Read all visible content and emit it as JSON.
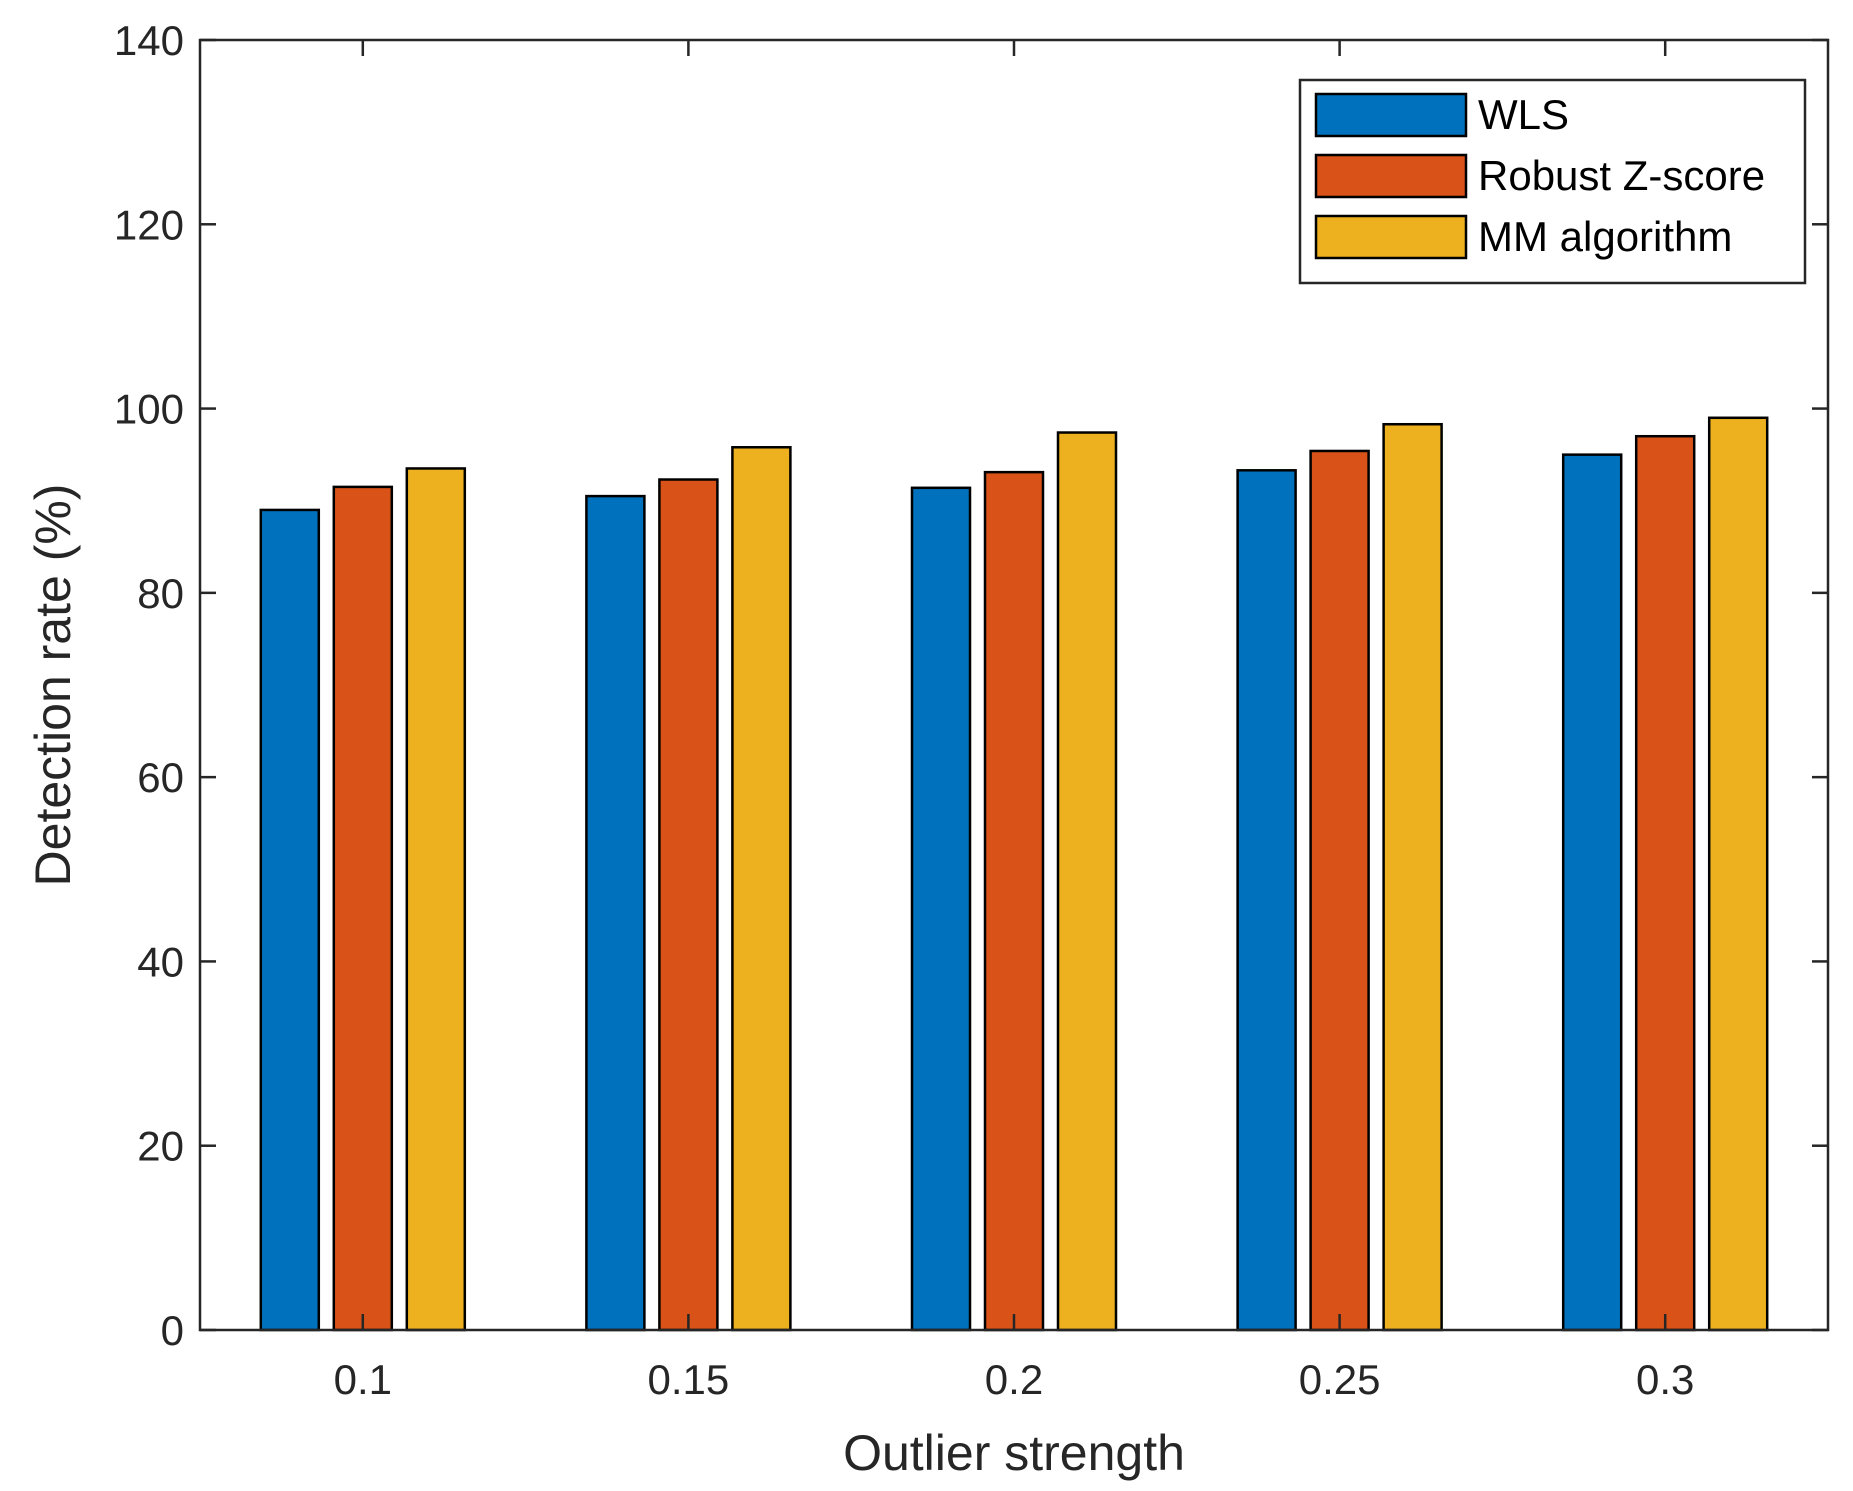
{
  "chart_data": {
    "type": "bar",
    "title": "",
    "xlabel": "Outlier strength",
    "ylabel": "Detection rate (%)",
    "ylim": [
      0,
      140
    ],
    "yticks": [
      0,
      20,
      40,
      60,
      80,
      100,
      120,
      140
    ],
    "categories": [
      "0.1",
      "0.15",
      "0.2",
      "0.25",
      "0.3"
    ],
    "series": [
      {
        "name": "WLS",
        "color": "#0072BD",
        "values": [
          89.0,
          90.5,
          91.4,
          93.3,
          95.0
        ]
      },
      {
        "name": "Robust Z-score",
        "color": "#D95319",
        "values": [
          91.5,
          92.3,
          93.1,
          95.4,
          97.0
        ]
      },
      {
        "name": "MM algorithm",
        "color": "#EDB120",
        "values": [
          93.5,
          95.8,
          97.4,
          98.3,
          99.0
        ]
      }
    ],
    "legend_position": "top-right",
    "grid": false
  }
}
